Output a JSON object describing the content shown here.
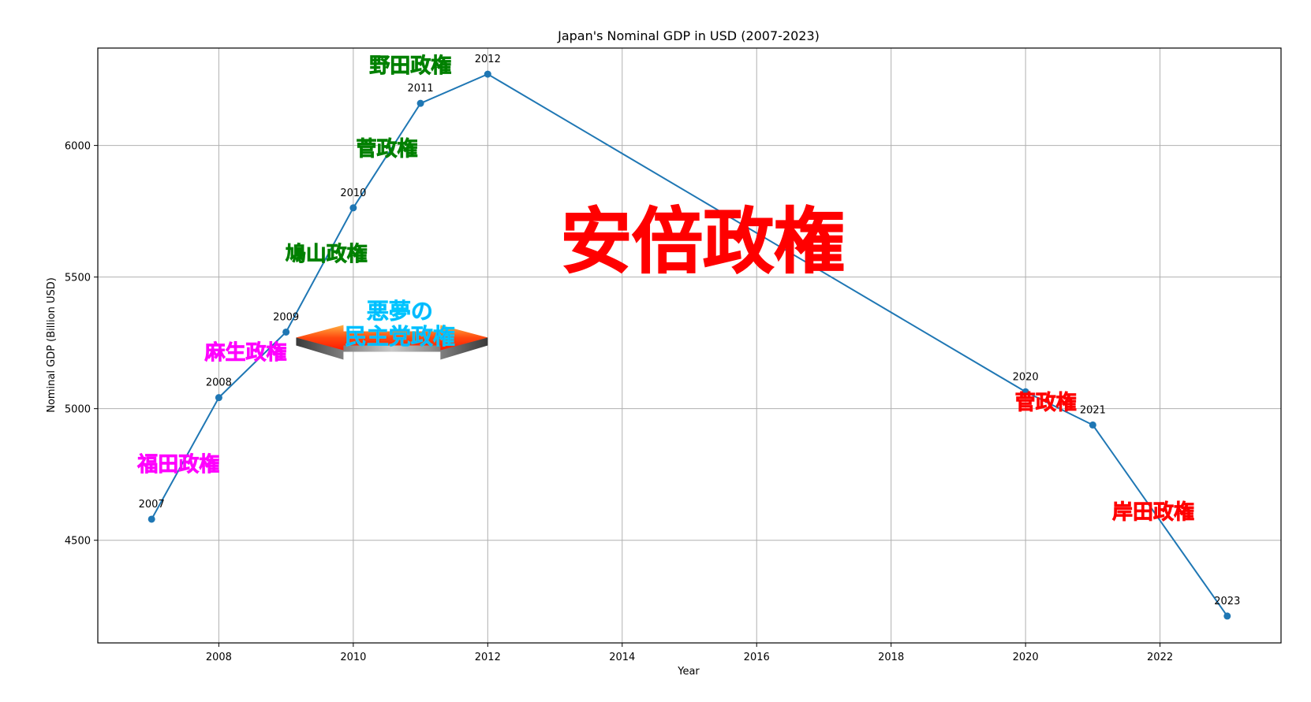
{
  "chart_data": {
    "type": "line",
    "title": "Japan's Nominal GDP in USD (2007-2023)",
    "xlabel": "Year",
    "ylabel": "Nominal GDP (Billion USD)",
    "x": [
      2007,
      2008,
      2009,
      2010,
      2011,
      2012,
      2020,
      2021,
      2023
    ],
    "values": [
      4580,
      5042,
      5291,
      5763,
      6160,
      6271,
      5064,
      4938,
      4212
    ],
    "point_labels": [
      "2007",
      "2008",
      "2009",
      "2010",
      "2011",
      "2012",
      "2020",
      "2021",
      "2023"
    ],
    "xlim": [
      2006.2,
      2023.8
    ],
    "ylim": [
      4110,
      6370
    ],
    "xticks": [
      2008,
      2010,
      2012,
      2014,
      2016,
      2018,
      2020,
      2022
    ],
    "yticks": [
      4500,
      5000,
      5500,
      6000
    ],
    "grid": true,
    "legend": null,
    "line_color": "#1f77b4",
    "annotations": [
      {
        "text": "福田政権",
        "x": 2007.4,
        "y": 4790,
        "color": "#ff00ff",
        "size": 26
      },
      {
        "text": "麻生政権",
        "x": 2008.4,
        "y": 5215,
        "color": "#ff00ff",
        "size": 26
      },
      {
        "text": "鳩山政権",
        "x": 2009.6,
        "y": 5590,
        "color": "#008000",
        "size": 26
      },
      {
        "text": "菅政権",
        "x": 2010.5,
        "y": 5990,
        "color": "#008000",
        "size": 26
      },
      {
        "text": "野田政権",
        "x": 2010.85,
        "y": 6305,
        "color": "#008000",
        "size": 26
      },
      {
        "text": "安倍政権",
        "x": 2015.2,
        "y": 5640,
        "color": "#ff0000",
        "size": 90
      },
      {
        "text": "菅政権",
        "x": 2020.3,
        "y": 5025,
        "color": "#ff0000",
        "size": 26
      },
      {
        "text": "岸田政権",
        "x": 2021.9,
        "y": 4610,
        "color": "#ff0000",
        "size": 26
      }
    ],
    "banner": {
      "line1": "悪夢の",
      "line2": "民主党政権",
      "x_from": 2009.15,
      "x_to": 2012.0,
      "y": 5270,
      "text_color": "#1e90ff",
      "arrow_colors": [
        "#ff2a00",
        "#ff9a2a",
        "#8a8a8a"
      ]
    }
  }
}
